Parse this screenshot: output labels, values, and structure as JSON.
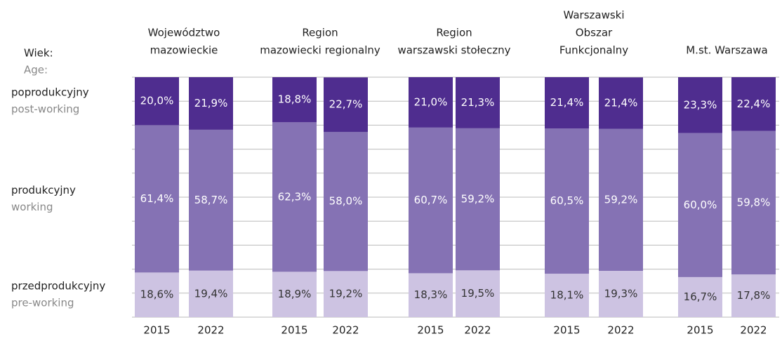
{
  "chart_data": {
    "type": "stacked_bar",
    "axis_label": [
      "Wiek:",
      "Age:"
    ],
    "group_labels": [
      [
        "Województwo",
        "mazowieckie"
      ],
      [
        "Region",
        "mazowiecki regionalny"
      ],
      [
        "Region",
        "warszawski stołeczny"
      ],
      [
        "Warszawski",
        "Obszar",
        "Funkcjonalny"
      ],
      [
        "M.st. Warszawa"
      ]
    ],
    "categories": [
      "2015",
      "2022",
      "2015",
      "2022",
      "2015",
      "2022",
      "2015",
      "2022",
      "2015",
      "2022"
    ],
    "ylim": [
      0,
      100
    ],
    "yticks": [
      0,
      10,
      20,
      30,
      40,
      50,
      60,
      70,
      80,
      90,
      100
    ],
    "grid": true,
    "series": [
      {
        "name": "przedprodukcyjny",
        "name_en": "pre-working",
        "color": "#cdc3e2",
        "values": [
          18.6,
          19.4,
          18.9,
          19.2,
          18.3,
          19.5,
          18.1,
          19.3,
          16.7,
          17.8
        ],
        "value_labels": [
          "18,6%",
          "19,4%",
          "18,9%",
          "19,2%",
          "18,3%",
          "19,5%",
          "18,1%",
          "19,3%",
          "16,7%",
          "17,8%"
        ]
      },
      {
        "name": "produkcyjny",
        "name_en": "working",
        "color": "#8572b4",
        "values": [
          61.4,
          58.7,
          62.3,
          58.0,
          60.7,
          59.2,
          60.5,
          59.2,
          60.0,
          59.8
        ],
        "value_labels": [
          "61,4%",
          "58,7%",
          "62,3%",
          "58,0%",
          "60,7%",
          "59,2%",
          "60,5%",
          "59,2%",
          "60,0%",
          "59,8%"
        ]
      },
      {
        "name": "poprodukcyjny",
        "name_en": "post-working",
        "color": "#4f2d8f",
        "values": [
          20.0,
          21.9,
          18.8,
          22.7,
          21.0,
          21.3,
          21.4,
          21.4,
          23.3,
          22.4
        ],
        "value_labels": [
          "20,0%",
          "21,9%",
          "18,8%",
          "22,7%",
          "21,0%",
          "21,3%",
          "21,4%",
          "21,4%",
          "23,3%",
          "22,4%"
        ]
      }
    ]
  }
}
